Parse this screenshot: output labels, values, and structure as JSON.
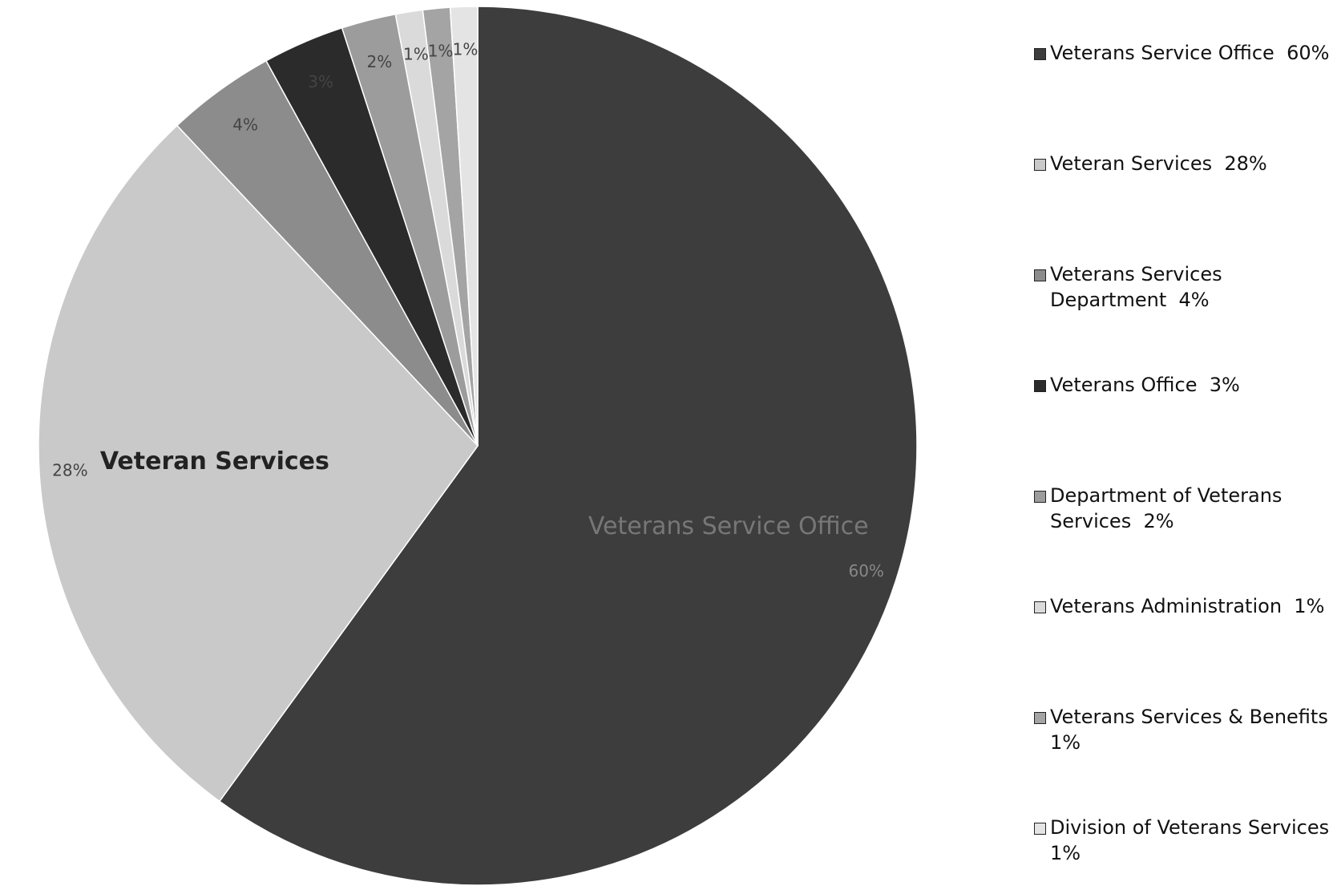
{
  "chart_data": {
    "type": "pie",
    "categories": [
      "Veterans Service Office",
      "Veteran Services",
      "Veterans Services Department",
      "Veterans Office",
      "Department of Veterans Services",
      "Veterans Administration",
      "Veterans Services & Benefits",
      "Division of Veterans Services"
    ],
    "values": [
      60,
      28,
      4,
      3,
      2,
      1,
      1,
      1
    ],
    "value_labels": [
      "60%",
      "28%",
      "4%",
      "3%",
      "2%",
      "1%",
      "1%",
      "1%"
    ],
    "colors": [
      "#3d3d3d",
      "#c9c9c9",
      "#8c8c8c",
      "#2b2b2b",
      "#9c9c9c",
      "#dadada",
      "#a4a4a4",
      "#e4e4e4"
    ],
    "legend": "right"
  }
}
